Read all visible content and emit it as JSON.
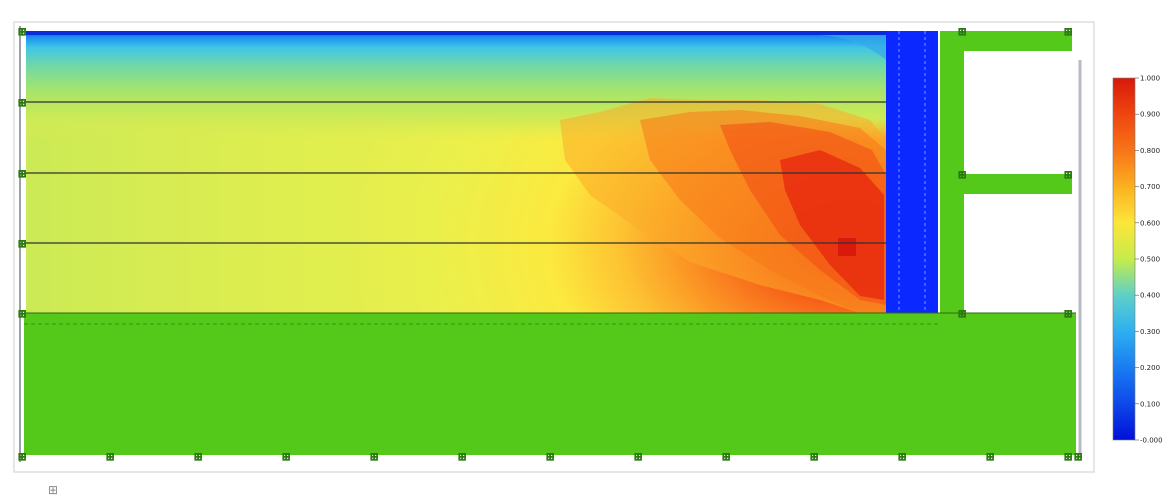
{
  "colors": {
    "background": "#ffffff",
    "frame_border": "#d8d8d8",
    "soil_green": "#55c91a",
    "wall_blue": "#0a28ff",
    "layer_line": "#303030"
  },
  "contour_plot": {
    "type": "filled-contour",
    "colormap": "jet",
    "value_range": [
      0.0,
      1.0
    ],
    "peak_region": "lower-right, adjacent to wall",
    "low_region": "top surface strip"
  },
  "colorbar": {
    "orientation": "vertical",
    "placement": "right",
    "ticks": [
      "1.000",
      "0.900",
      "0.800",
      "0.700",
      "0.600",
      "0.500",
      "0.400",
      "0.300",
      "0.200",
      "0.100",
      "-0.000"
    ],
    "stops": [
      "#d7190a",
      "#ee4510",
      "#f87418",
      "#fbb020",
      "#fde53a",
      "#c6ec4a",
      "#5ed0c8",
      "#2eb0f0",
      "#1a7cf2",
      "#0e48ea",
      "#0010d8"
    ]
  },
  "model": {
    "layer_count": 4,
    "struts": 2,
    "node_marker": "⊞"
  },
  "footer": {
    "marker": "⊞"
  }
}
